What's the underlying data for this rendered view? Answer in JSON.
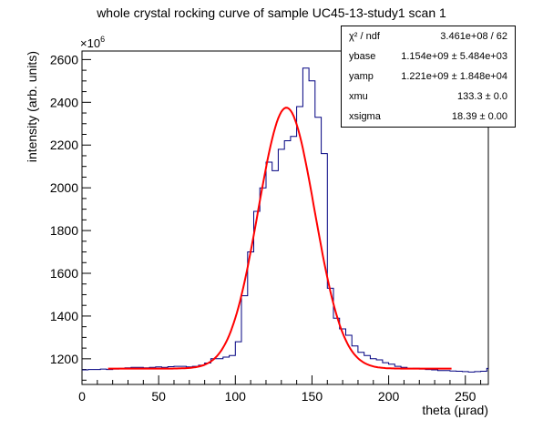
{
  "chart_data": {
    "type": "histogram",
    "title": "whole crystal rocking curve of sample UC45-13-study1 scan 1",
    "xlabel": "theta (µrad)",
    "ylabel": "intensity (arb. units)",
    "y_multiplier_label": "×10",
    "y_multiplier_exponent": "6",
    "xlim": [
      0,
      265
    ],
    "ylim": [
      1080,
      2640
    ],
    "x_ticks": [
      0,
      50,
      100,
      150,
      200,
      250
    ],
    "y_ticks": [
      1200,
      1400,
      1600,
      1800,
      2000,
      2200,
      2400,
      2600
    ],
    "bin_width": 4,
    "histogram": {
      "name": "data",
      "color": "#000080",
      "x_start": 0,
      "values": [
        1148,
        1150,
        1150,
        1152,
        1150,
        1152,
        1155,
        1158,
        1160,
        1160,
        1158,
        1160,
        1162,
        1160,
        1163,
        1165,
        1165,
        1162,
        1165,
        1170,
        1180,
        1200,
        1200,
        1208,
        1215,
        1280,
        1495,
        1700,
        1890,
        2000,
        2120,
        2080,
        2180,
        2220,
        2240,
        2380,
        2560,
        2500,
        2330,
        2160,
        1530,
        1390,
        1340,
        1310,
        1260,
        1230,
        1215,
        1200,
        1195,
        1182,
        1175,
        1165,
        1160,
        1155,
        1156,
        1152,
        1150,
        1148,
        1145,
        1145,
        1143,
        1142,
        1140,
        1138,
        1140,
        1142,
        1155
      ]
    },
    "fit": {
      "name": "fit",
      "color": "#ff0000",
      "function": "ybase + yamp*gaus(xmu, xsigma)",
      "x_range": [
        17,
        241
      ],
      "ybase_e6": 1154,
      "ypeak_e6": 2375,
      "xmu": 133.3,
      "xsigma": 18.39
    },
    "stats_box": {
      "position": "top-right",
      "rows": [
        {
          "label": "χ² / ndf",
          "value": "3.461e+08 / 62"
        },
        {
          "label": "ybase",
          "value": "1.154e+09 ± 5.484e+03"
        },
        {
          "label": "yamp",
          "value": "1.221e+09 ± 1.848e+04"
        },
        {
          "label": "xmu",
          "value": "133.3 ± 0.0"
        },
        {
          "label": "xsigma",
          "value": "18.39 ± 0.00"
        }
      ]
    },
    "grid": false
  }
}
